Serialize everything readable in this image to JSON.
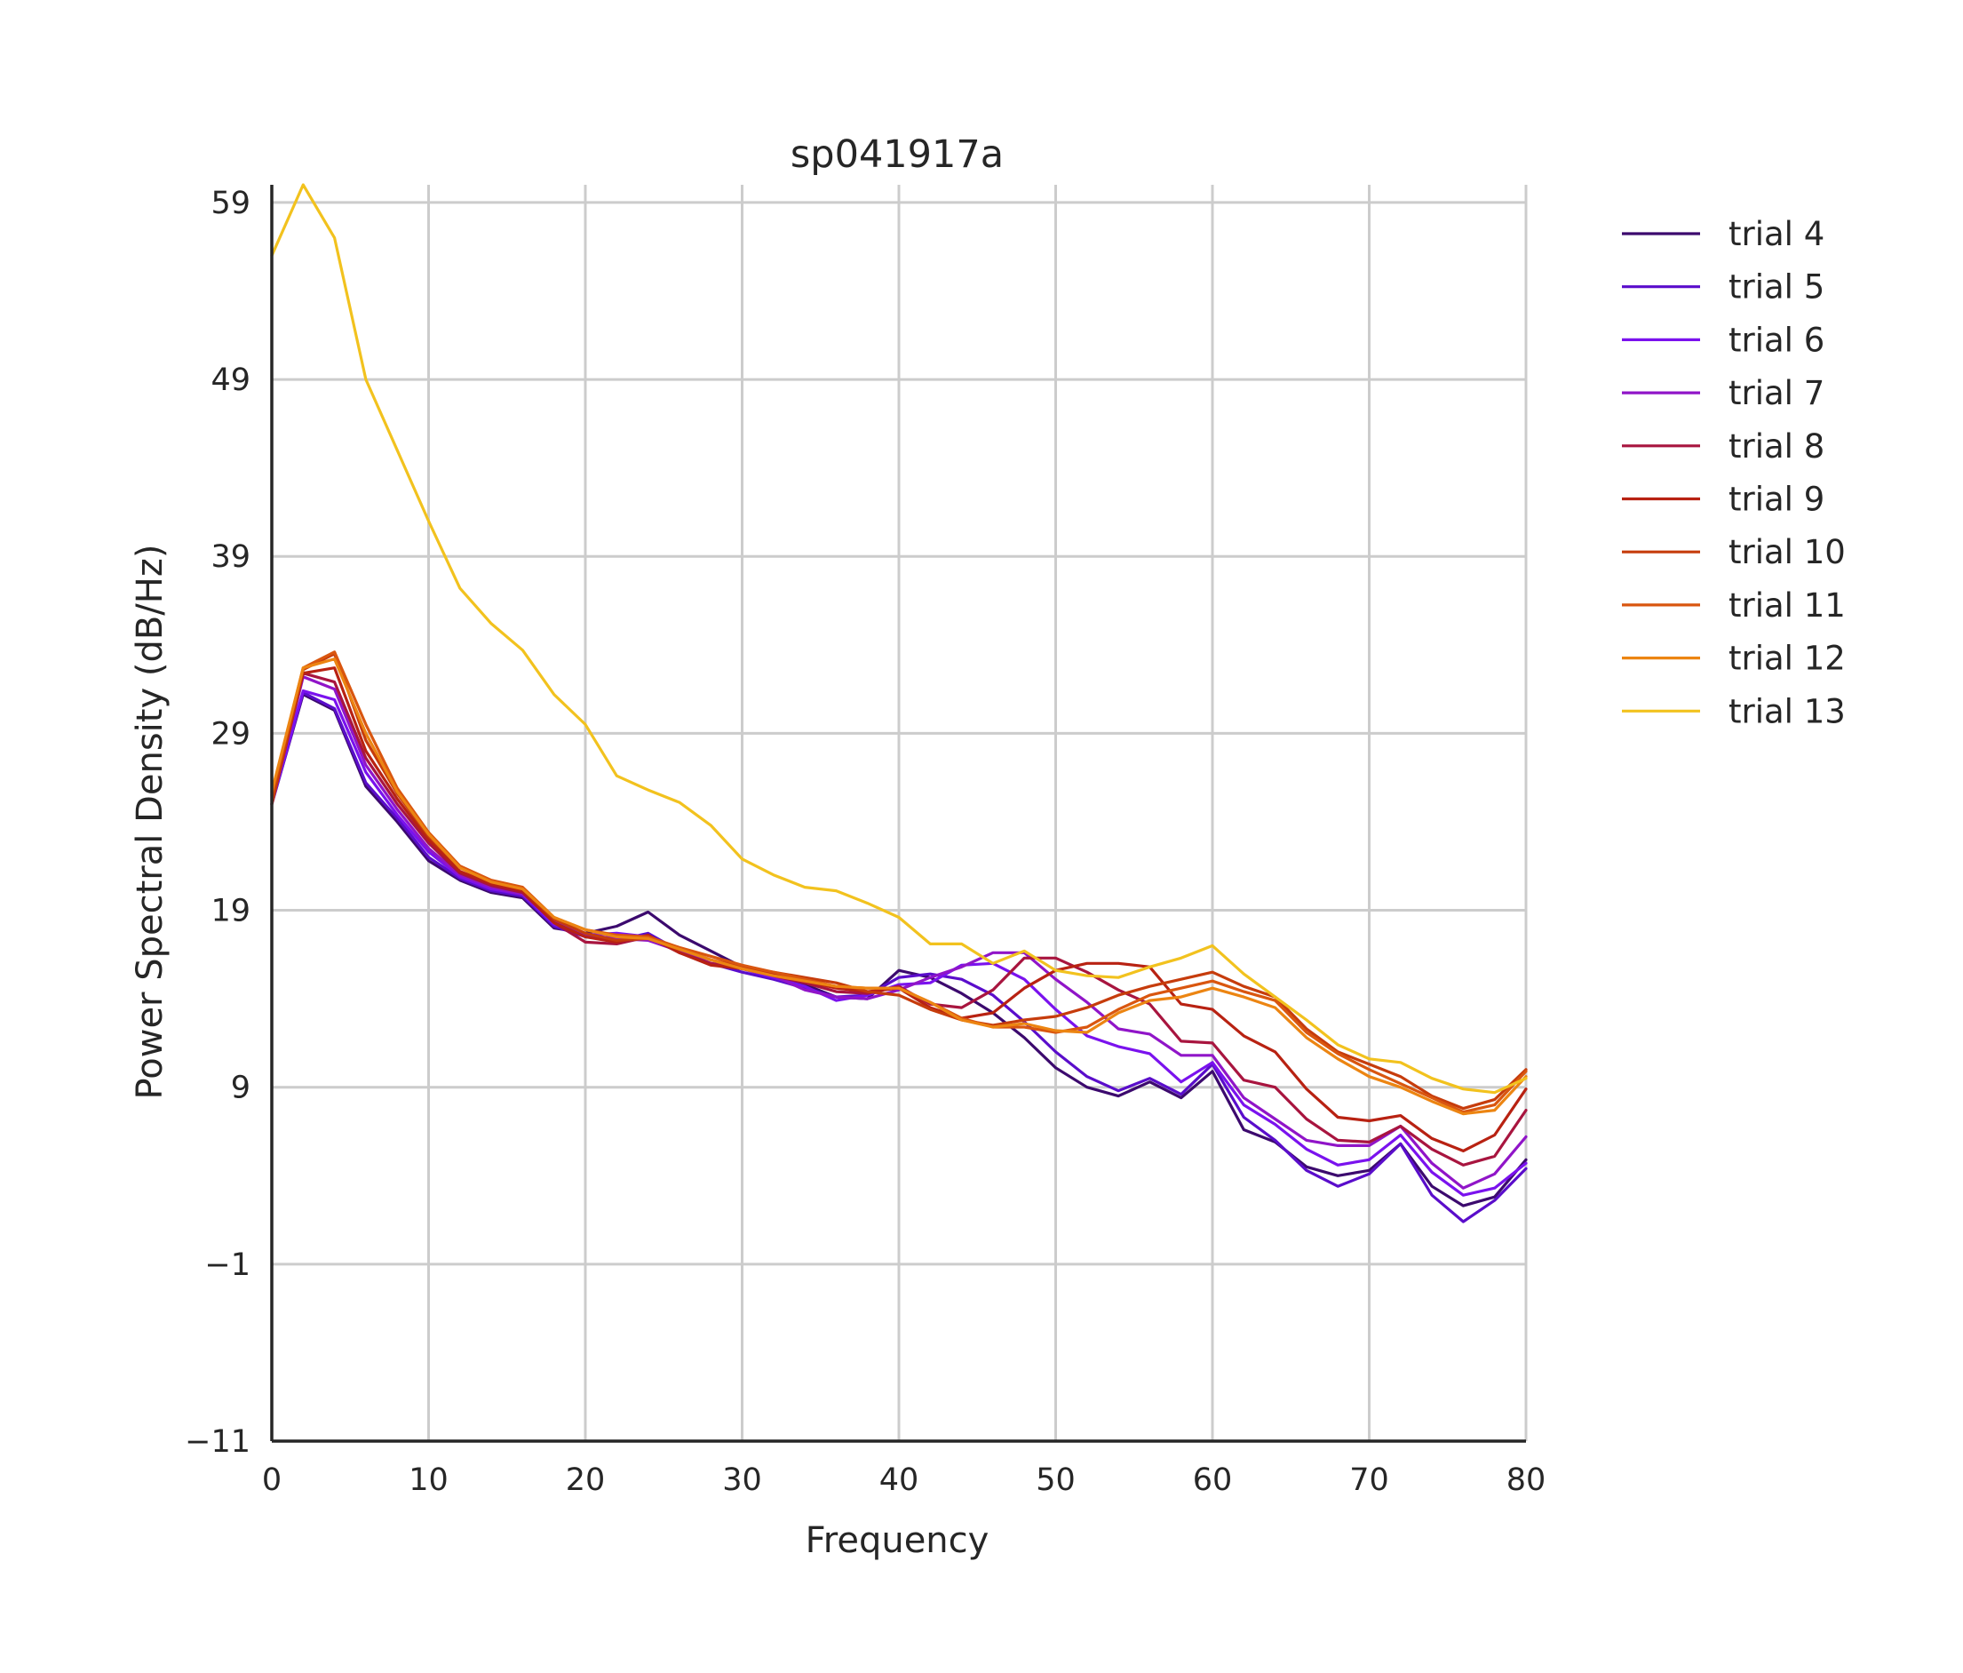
{
  "chart_data": {
    "type": "line",
    "title": "sp041917a",
    "xlabel": "Frequency",
    "ylabel": "Power Spectral Density (dB/Hz)",
    "xlim": [
      0,
      80
    ],
    "ylim": [
      -11,
      60
    ],
    "xticks": [
      0,
      10,
      20,
      30,
      40,
      50,
      60,
      70,
      80
    ],
    "yticks": [
      -11,
      -1,
      9,
      19,
      29,
      39,
      49,
      59
    ],
    "xtick_labels": [
      "0",
      "10",
      "20",
      "30",
      "40",
      "50",
      "60",
      "70",
      "80"
    ],
    "ytick_labels": [
      "−11",
      "−1",
      "9",
      "19",
      "29",
      "39",
      "49",
      "59"
    ],
    "grid": true,
    "legend_position": "outside-right",
    "x": [
      0,
      2,
      4,
      6,
      8,
      10,
      12,
      14,
      16,
      18,
      20,
      22,
      24,
      26,
      28,
      30,
      32,
      34,
      36,
      38,
      40,
      42,
      44,
      46,
      48,
      50,
      52,
      54,
      56,
      58,
      60,
      62,
      64,
      66,
      68,
      70,
      72,
      74,
      76,
      78,
      80
    ],
    "series": [
      {
        "name": "trial 4",
        "color": "#3c0a6e",
        "values": [
          25,
          31.2,
          30.3,
          26,
          24,
          21.8,
          20.7,
          20,
          19.7,
          18,
          17.7,
          18.1,
          18.9,
          17.6,
          16.7,
          15.8,
          15.4,
          14.8,
          14.1,
          14.0,
          15.6,
          15.2,
          14.3,
          13.2,
          11.8,
          10.1,
          9.0,
          8.5,
          9.3,
          8.4,
          9.9,
          6.6,
          5.9,
          4.5,
          4.0,
          4.3,
          5.8,
          3.4,
          2.3,
          2.8,
          4.9
        ]
      },
      {
        "name": "trial 5",
        "color": "#5a0dcb",
        "values": [
          25,
          31.3,
          30.4,
          26.2,
          24.2,
          22,
          20.8,
          20.1,
          19.8,
          18.1,
          17.5,
          17.3,
          17.7,
          16.7,
          16.0,
          15.5,
          15.1,
          14.6,
          14.1,
          14.2,
          15.2,
          15.4,
          15.1,
          14.2,
          12.7,
          11.0,
          9.6,
          8.8,
          9.5,
          8.6,
          10.3,
          7.3,
          6.0,
          4.3,
          3.4,
          4.1,
          5.8,
          2.9,
          1.4,
          2.6,
          4.4
        ]
      },
      {
        "name": "trial 6",
        "color": "#7a12ee",
        "values": [
          25,
          31.4,
          30.9,
          26.8,
          24.4,
          22.3,
          20.9,
          20.2,
          19.9,
          18.2,
          17.6,
          17.7,
          17.5,
          16.8,
          16.2,
          15.7,
          15.2,
          14.7,
          13.9,
          14.2,
          14.8,
          14.9,
          15.9,
          16.0,
          15.1,
          13.4,
          11.9,
          11.3,
          10.9,
          9.3,
          10.4,
          8.0,
          6.9,
          5.5,
          4.6,
          4.9,
          6.3,
          4.2,
          2.9,
          3.3,
          4.7
        ]
      },
      {
        "name": "trial 7",
        "color": "#9015c8",
        "values": [
          25,
          32.2,
          31.5,
          27.2,
          24.7,
          22.5,
          21.0,
          20.3,
          19.9,
          18.4,
          17.6,
          17.4,
          17.3,
          16.7,
          16.0,
          15.8,
          15.3,
          14.5,
          14.1,
          14.0,
          14.5,
          15.2,
          15.8,
          16.6,
          16.6,
          15.1,
          13.8,
          12.3,
          12.0,
          10.8,
          10.8,
          8.4,
          7.2,
          6.0,
          5.7,
          5.7,
          6.8,
          4.7,
          3.3,
          4.1,
          6.2
        ]
      },
      {
        "name": "trial 8",
        "color": "#a8153f",
        "values": [
          25,
          32.4,
          31.9,
          27.6,
          25.0,
          22.8,
          21.1,
          20.4,
          20.0,
          18.3,
          17.2,
          17.1,
          17.5,
          16.6,
          16.0,
          15.7,
          15.3,
          14.9,
          14.4,
          14.3,
          14.7,
          13.7,
          13.5,
          14.5,
          16.3,
          16.3,
          15.5,
          14.5,
          13.7,
          11.6,
          11.5,
          9.4,
          9.0,
          7.2,
          6.0,
          5.9,
          6.8,
          5.5,
          4.6,
          5.1,
          7.7
        ]
      },
      {
        "name": "trial 9",
        "color": "#b82212",
        "values": [
          25,
          32.4,
          32.7,
          28.0,
          25.3,
          23.0,
          21.2,
          20.5,
          20.1,
          18.3,
          17.5,
          17.2,
          17.6,
          16.6,
          15.9,
          15.7,
          15.4,
          15.0,
          14.6,
          14.4,
          14.6,
          13.5,
          12.9,
          13.2,
          14.6,
          15.6,
          16.0,
          16.0,
          15.8,
          13.7,
          13.4,
          11.9,
          11.0,
          8.9,
          7.3,
          7.1,
          7.4,
          6.1,
          5.4,
          6.3,
          8.9
        ]
      },
      {
        "name": "trial 10",
        "color": "#c63c0c",
        "values": [
          25,
          32.6,
          33.5,
          28.6,
          25.6,
          23.2,
          21.4,
          20.6,
          20.2,
          18.5,
          17.7,
          17.3,
          17.4,
          16.8,
          16.2,
          15.8,
          15.5,
          15.2,
          14.9,
          14.4,
          14.2,
          13.4,
          12.8,
          12.5,
          12.8,
          13.0,
          13.5,
          14.2,
          14.7,
          15.1,
          15.5,
          14.7,
          14.1,
          12.3,
          11.0,
          10.3,
          9.6,
          8.5,
          7.8,
          8.3,
          10.0
        ]
      },
      {
        "name": "trial 11",
        "color": "#d9560f",
        "values": [
          25.5,
          32.7,
          33.6,
          29.5,
          25.9,
          23.4,
          21.5,
          20.7,
          20.3,
          18.6,
          17.9,
          17.6,
          17.5,
          16.9,
          16.4,
          15.9,
          15.5,
          15.1,
          14.7,
          14.6,
          14.6,
          13.8,
          12.9,
          12.4,
          12.4,
          12.1,
          12.4,
          13.4,
          14.2,
          14.6,
          15.0,
          14.4,
          13.9,
          12.1,
          10.9,
          10.0,
          9.2,
          8.4,
          7.6,
          8.0,
          9.9
        ]
      },
      {
        "name": "trial 12",
        "color": "#ec8512",
        "values": [
          25.7,
          32.7,
          33.2,
          29.0,
          25.7,
          23.3,
          21.4,
          20.6,
          20.2,
          18.6,
          17.9,
          17.5,
          17.4,
          16.8,
          16.2,
          15.7,
          15.3,
          15.0,
          14.7,
          14.6,
          14.6,
          13.8,
          12.8,
          12.4,
          12.6,
          12.2,
          12.1,
          13.2,
          13.9,
          14.1,
          14.6,
          14.1,
          13.5,
          11.8,
          10.6,
          9.6,
          9.0,
          8.2,
          7.5,
          7.7,
          9.6
        ]
      },
      {
        "name": "trial 13",
        "color": "#f2c21e",
        "values": [
          56,
          60,
          57,
          49,
          45,
          41,
          37.2,
          35.2,
          33.7,
          31.2,
          29.5,
          26.6,
          25.8,
          25.1,
          23.8,
          21.9,
          21.0,
          20.3,
          20.1,
          19.4,
          18.6,
          17.1,
          17.1,
          16.0,
          16.7,
          15.6,
          15.3,
          15.2,
          15.8,
          16.3,
          17.0,
          15.4,
          14.1,
          12.8,
          11.4,
          10.6,
          10.4,
          9.5,
          8.9,
          8.7,
          9.5
        ]
      }
    ]
  }
}
